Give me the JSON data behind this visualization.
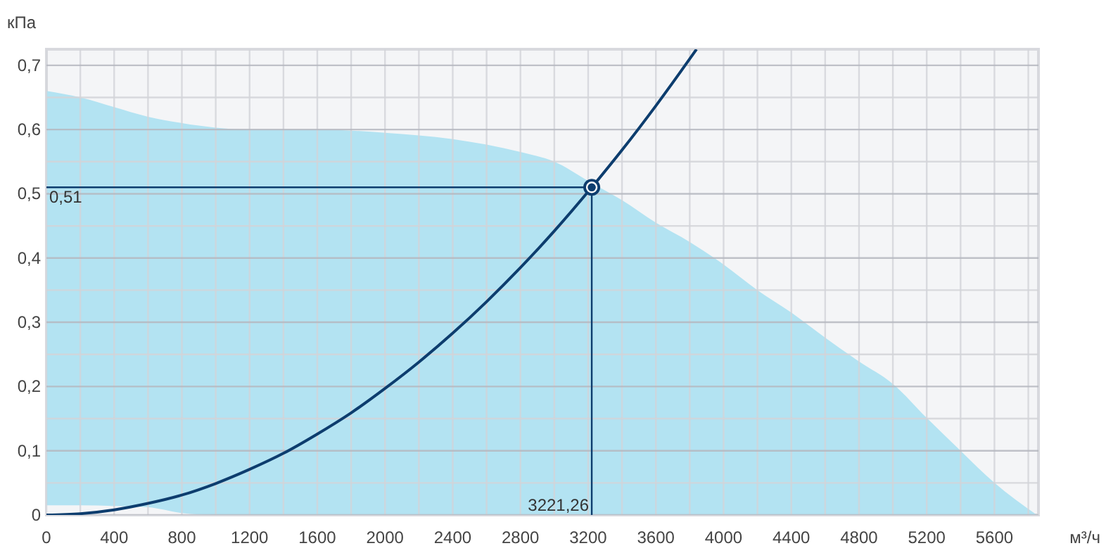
{
  "chart_data": {
    "type": "line",
    "xlabel": "м³/ч",
    "ylabel": "кПа",
    "xlim": [
      0,
      5860
    ],
    "ylim": [
      0,
      0.725
    ],
    "xticks": [
      0,
      {
        "value": 200,
        "label": null
      },
      400,
      {
        "value": 600,
        "label": null
      },
      800,
      {
        "value": 1000,
        "label": null
      },
      1200,
      {
        "value": 1400,
        "label": null
      },
      1600,
      {
        "value": 1800,
        "label": null
      },
      2000,
      {
        "value": 2200,
        "label": null
      },
      2400,
      {
        "value": 2600,
        "label": null
      },
      2800,
      {
        "value": 3000,
        "label": null
      },
      3200,
      {
        "value": 3400,
        "label": null
      },
      3600,
      {
        "value": 3800,
        "label": null
      },
      4000,
      {
        "value": 4200,
        "label": null
      },
      4400,
      {
        "value": 4600,
        "label": null
      },
      4800,
      {
        "value": 5000,
        "label": null
      },
      5200,
      {
        "value": 5400,
        "label": null
      },
      5600,
      {
        "value": 5800,
        "label": null
      }
    ],
    "yticks": [
      0,
      {
        "value": 0.05,
        "label": null
      },
      {
        "value": 0.1,
        "label": "0,1"
      },
      {
        "value": 0.15,
        "label": null
      },
      {
        "value": 0.2,
        "label": "0,2"
      },
      {
        "value": 0.25,
        "label": null
      },
      {
        "value": 0.3,
        "label": "0,3"
      },
      {
        "value": 0.35,
        "label": null
      },
      {
        "value": 0.4,
        "label": "0,4"
      },
      {
        "value": 0.45,
        "label": null
      },
      {
        "value": 0.5,
        "label": "0,5"
      },
      {
        "value": 0.55,
        "label": null
      },
      {
        "value": 0.6,
        "label": "0,6"
      },
      {
        "value": 0.65,
        "label": null
      },
      {
        "value": 0.7,
        "label": "0,7"
      }
    ],
    "grid": true,
    "series": [
      {
        "type": "area",
        "color": "#b3e3f2",
        "x": [
          0,
          200,
          400,
          600,
          800,
          1000,
          1200,
          1600,
          2000,
          2400,
          2800,
          3000,
          3200,
          3400,
          3600,
          3800,
          4000,
          4200,
          4400,
          4600,
          4800,
          5000,
          5200,
          5400,
          5600,
          5850
        ],
        "values": [
          0.66,
          0.65,
          0.635,
          0.62,
          0.61,
          0.603,
          0.6,
          0.6,
          0.595,
          0.585,
          0.565,
          0.55,
          0.52,
          0.49,
          0.455,
          0.425,
          0.39,
          0.35,
          0.315,
          0.276,
          0.239,
          0.204,
          0.151,
          0.1,
          0.05,
          0
        ]
      },
      {
        "type": "area",
        "color": "#f4f5f7",
        "x": [
          0,
          200,
          400,
          600,
          800,
          1000
        ],
        "values": [
          0.015,
          0.015,
          0.014,
          0.012,
          0.003,
          0
        ]
      },
      {
        "color": "#0d3d6e",
        "marker": "none",
        "line_style": "solid",
        "x": [
          0,
          200,
          400,
          600,
          800,
          1000,
          1200,
          1400,
          1600,
          1800,
          2000,
          2200,
          2400,
          2600,
          2800,
          3000,
          3221.26,
          3400,
          3600,
          3800,
          3840
        ],
        "values": [
          0,
          0.002,
          0.008,
          0.018,
          0.031,
          0.049,
          0.071,
          0.096,
          0.126,
          0.159,
          0.197,
          0.238,
          0.283,
          0.332,
          0.385,
          0.442,
          0.51,
          0.568,
          0.637,
          0.71,
          0.725
        ]
      },
      {
        "type": "scatter",
        "color": "#0d3d6e",
        "marker": "circle",
        "x": [
          3221.26
        ],
        "values": [
          0.51
        ]
      }
    ],
    "ref_lines": [
      {
        "axis": "y",
        "value": 0.51,
        "label": "0,51",
        "color": "#0d3d6e"
      },
      {
        "axis": "x",
        "value": 3221.26,
        "label": "3221,26",
        "color": "#0d3d6e"
      }
    ]
  }
}
